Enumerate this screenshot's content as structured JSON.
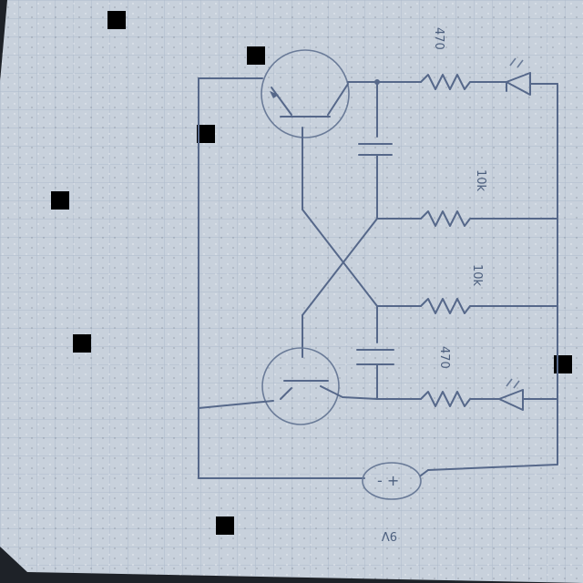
{
  "diagram": {
    "resistor_labels": [
      "470",
      "10k",
      "10k",
      "470"
    ],
    "battery_label": "9V",
    "battery_symbol": "- +"
  },
  "colors": {
    "paper": "#c8d1dc",
    "grid": "#a9b6c6",
    "ink": "#56688a",
    "background": "#1e2228"
  }
}
